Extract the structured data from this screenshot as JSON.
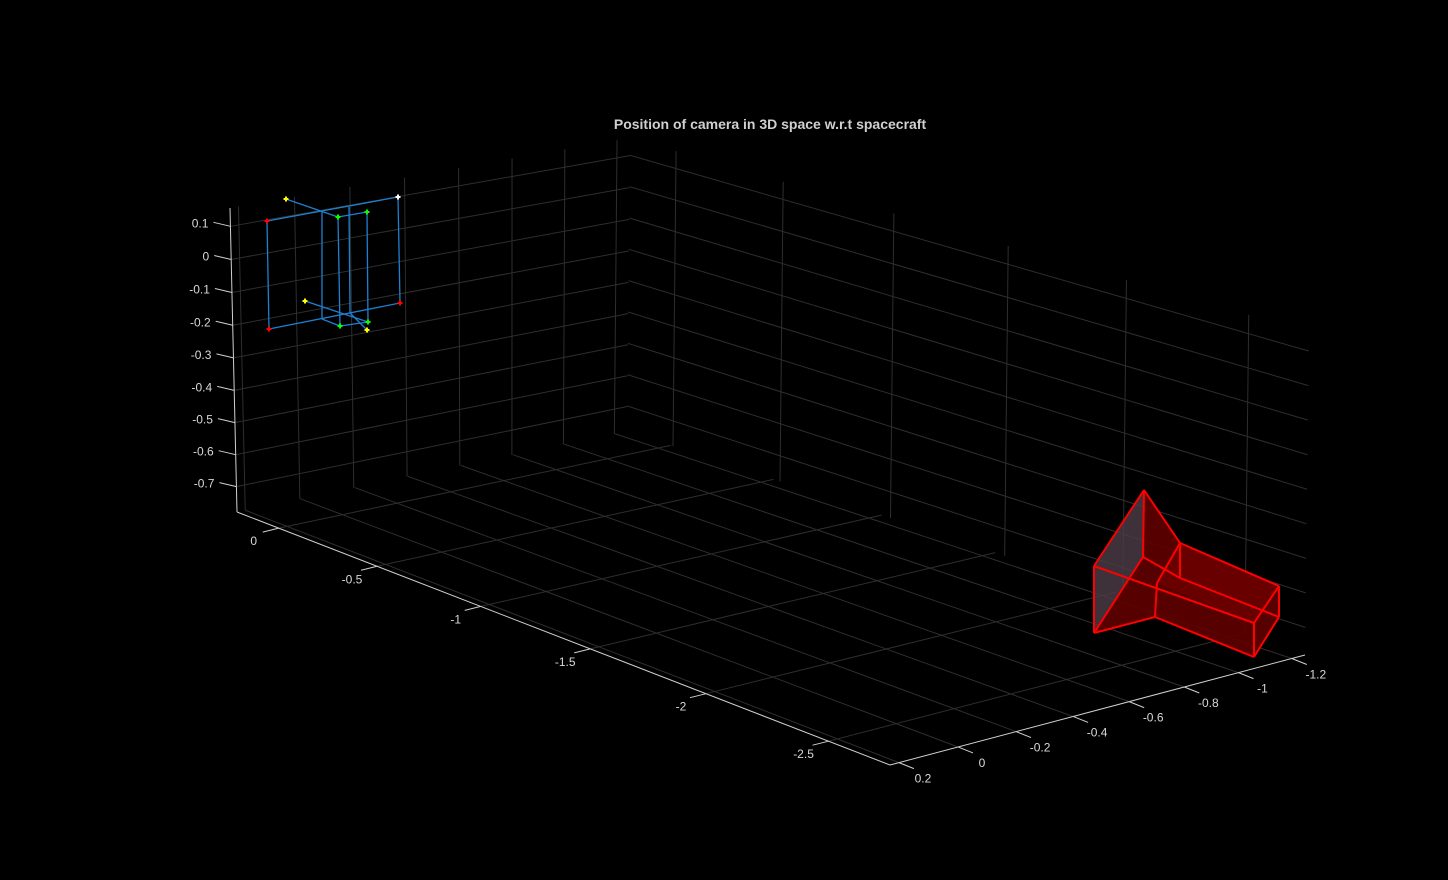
{
  "chart_data": {
    "type": "line",
    "projection": "3d",
    "title": "Position of camera in 3D space w.r.t spacecraft",
    "background": "#000000",
    "grid": true,
    "x": {
      "ticks": [
        0,
        -0.5,
        -1,
        -1.5,
        -2,
        -2.5
      ],
      "tick_labels": [
        "0",
        "-0.5",
        "-1",
        "-1.5",
        "-2",
        "-2.5"
      ],
      "lim": [
        -2.74,
        0.22
      ]
    },
    "y": {
      "ticks": [
        0.2,
        0,
        -0.2,
        -0.4,
        -0.6,
        -0.8,
        -1,
        -1.2
      ],
      "tick_labels": [
        "0.2",
        "0",
        "-0.2",
        "-0.4",
        "-0.6",
        "-0.8",
        "-1",
        "-1.2"
      ],
      "lim": [
        -1.25,
        0.23
      ]
    },
    "z": {
      "ticks": [
        0.1,
        0,
        -0.1,
        -0.2,
        -0.3,
        -0.4,
        -0.5,
        -0.6,
        -0.7
      ],
      "tick_labels": [
        "0.1",
        "0",
        "-0.1",
        "-0.2",
        "-0.3",
        "-0.4",
        "-0.5",
        "-0.6",
        "-0.7"
      ],
      "lim": [
        -0.78,
        0.155
      ]
    },
    "series": [
      {
        "kind": "wireframe",
        "color": "#0072bd",
        "marker": "+",
        "marker_colors": [
          "#ff0000",
          "#00ff00",
          "#ffff00",
          "#ffffff"
        ]
      },
      {
        "kind": "filled-mesh",
        "edge_color": "#ff0000",
        "face_color": "#600000"
      }
    ]
  }
}
